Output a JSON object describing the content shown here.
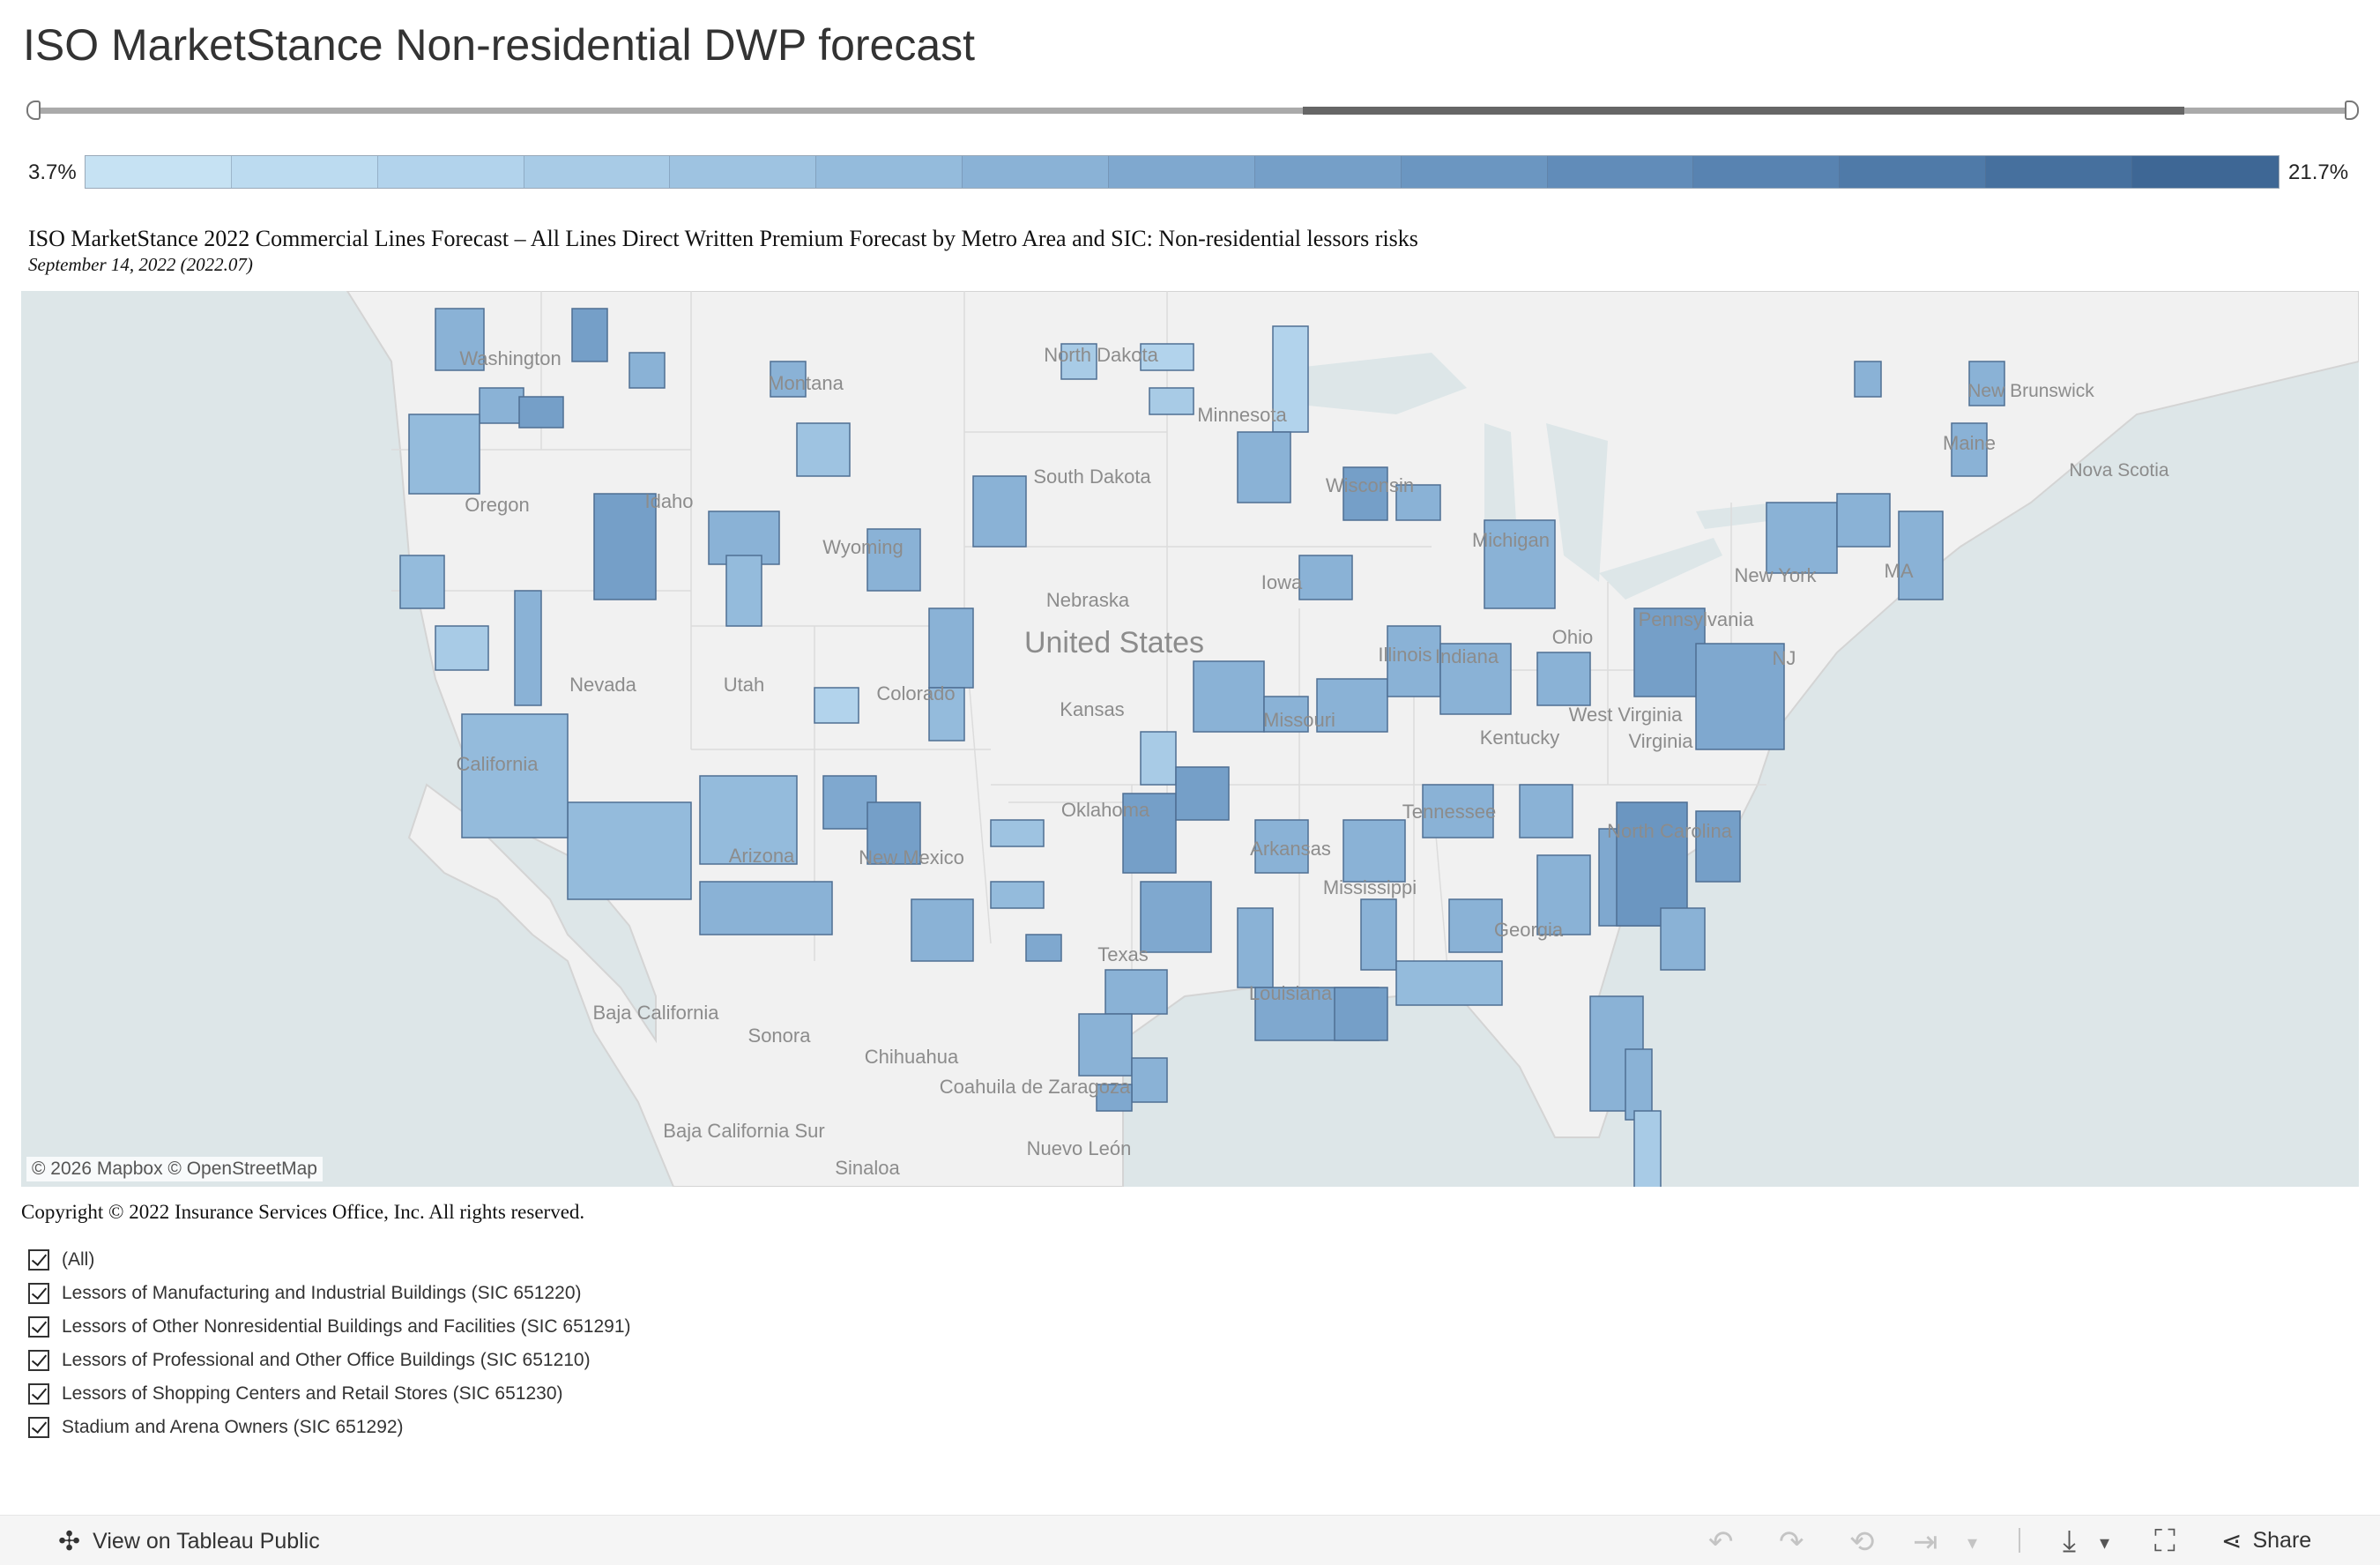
{
  "title": "ISO MarketStance Non-residential DWP forecast",
  "legend": {
    "min": "3.7%",
    "max": "21.7%",
    "colors": [
      "#c6e2f3",
      "#bcdbf0",
      "#b2d3ec",
      "#a8cbe6",
      "#9ec3e1",
      "#94bbdc",
      "#8ab2d6",
      "#7fa8cf",
      "#759fc8",
      "#6b96c1",
      "#618cb9",
      "#5883b1",
      "#4f7aa8",
      "#46709e",
      "#3e6795"
    ]
  },
  "subtitle": "ISO MarketStance 2022 Commercial Lines Forecast – All Lines Direct Written Premium Forecast by Metro Area and SIC: Non-residential lessors risks",
  "date": "September 14, 2022 (2022.07)",
  "map": {
    "attribution": "© 2026 Mapbox  © OpenStreetMap",
    "labels": [
      "Washington",
      "Montana",
      "North Dakota",
      "Minnesota",
      "Oregon",
      "Idaho",
      "Wyoming",
      "South Dakota",
      "Wisconsin",
      "Michigan",
      "Maine",
      "New Brunswick",
      "Nova Scotia",
      "Nebraska",
      "Iowa",
      "Nevada",
      "Utah",
      "Colorado",
      "Kansas",
      "Missouri",
      "Illinois",
      "Indiana",
      "Ohio",
      "Pennsylvania",
      "New York",
      "MA",
      "California",
      "Arizona",
      "New Mexico",
      "Oklahoma",
      "Arkansas",
      "Tennessee",
      "Kentucky",
      "West Virginia",
      "Virginia",
      "NJ",
      "North Carolina",
      "Mississippi",
      "Georgia",
      "Texas",
      "Louisiana",
      "Baja California",
      "Sonora",
      "Chihuahua",
      "Coahuila de Zaragoza",
      "Baja California Sur",
      "Sinaloa",
      "Nuevo León",
      "United States"
    ]
  },
  "copyright": "Copyright © 2022 Insurance Services Office, Inc. All rights reserved.",
  "filters": [
    "(All)",
    "Lessors of Manufacturing and Industrial Buildings (SIC 651220)",
    "Lessors of Other Nonresidential Buildings and Facilities (SIC 651291)",
    "Lessors of Professional and Other Office Buildings (SIC 651210)",
    "Lessors of Shopping Centers and Retail Stores (SIC 651230)",
    "Stadium and Arena Owners (SIC 651292)"
  ],
  "toolbar": {
    "view_label": "View on Tableau Public",
    "share_label": "Share"
  }
}
